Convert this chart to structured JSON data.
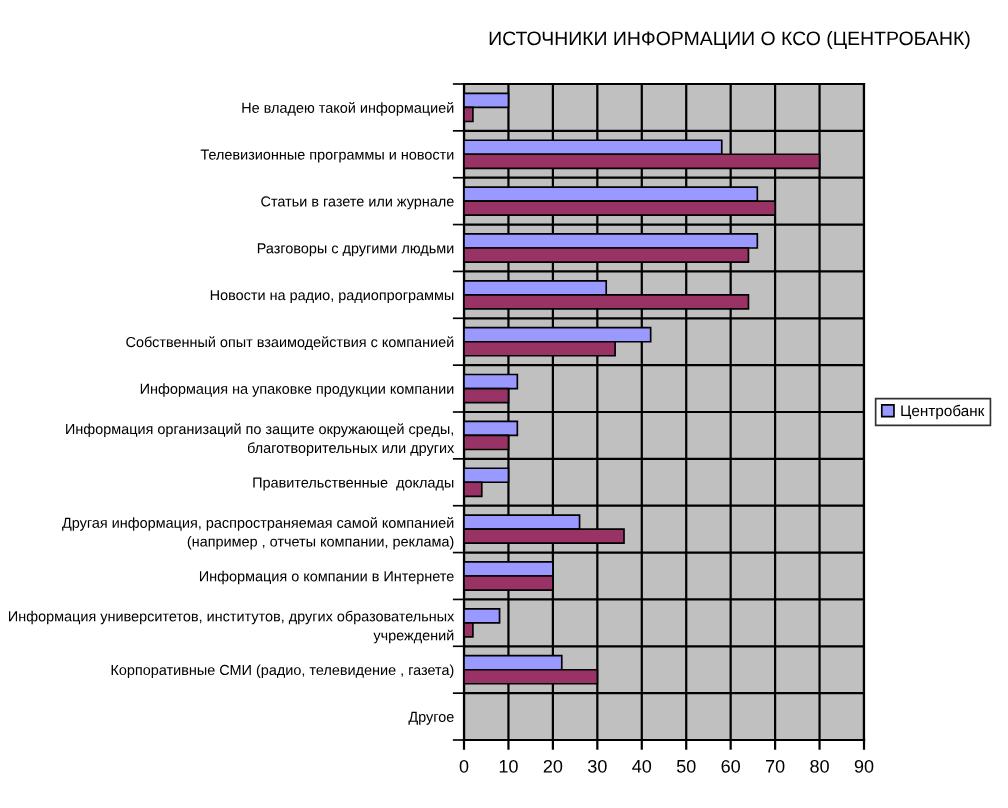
{
  "chart_data": {
    "type": "bar",
    "orientation": "horizontal",
    "title": "ИСТОЧНИКИ ИНФОРМАЦИИ О КСО (ЦЕНТРОБАНК)",
    "categories": [
      "Не владею такой информацией",
      "Телевизионные программы и новости",
      "Статьи в газете или журнале",
      "Разговоры с другими людьми",
      "Новости на радио, радиопрограммы",
      "Собственный опыт взаимодействия с компанией",
      "Информация на упаковке продукции компании",
      "Информация организаций по защите окружающей среды,\nблаготворительных или других",
      "Правительственные  доклады",
      "Другая информация, распространяемая самой компанией\n(например , отчеты компании, реклама)",
      "Информация о компании в Интернете",
      "Информация университетов, институтов, других образовательных\nучреждений",
      "Корпоративные СМИ (радио, телевидение , газета)",
      "Другое"
    ],
    "series": [
      {
        "name": "Центробанк",
        "color": "#9999ff",
        "values": [
          10,
          58,
          66,
          66,
          32,
          42,
          12,
          12,
          10,
          26,
          20,
          8,
          22,
          null
        ]
      },
      {
        "color": "#993366",
        "values": [
          2,
          80,
          70,
          64,
          64,
          34,
          10,
          10,
          4,
          36,
          20,
          2,
          30,
          null
        ]
      }
    ],
    "xlim": [
      0,
      90
    ],
    "xticks": [
      0,
      10,
      20,
      30,
      40,
      50,
      60,
      70,
      80,
      90
    ],
    "grid": true,
    "legend": "right"
  }
}
